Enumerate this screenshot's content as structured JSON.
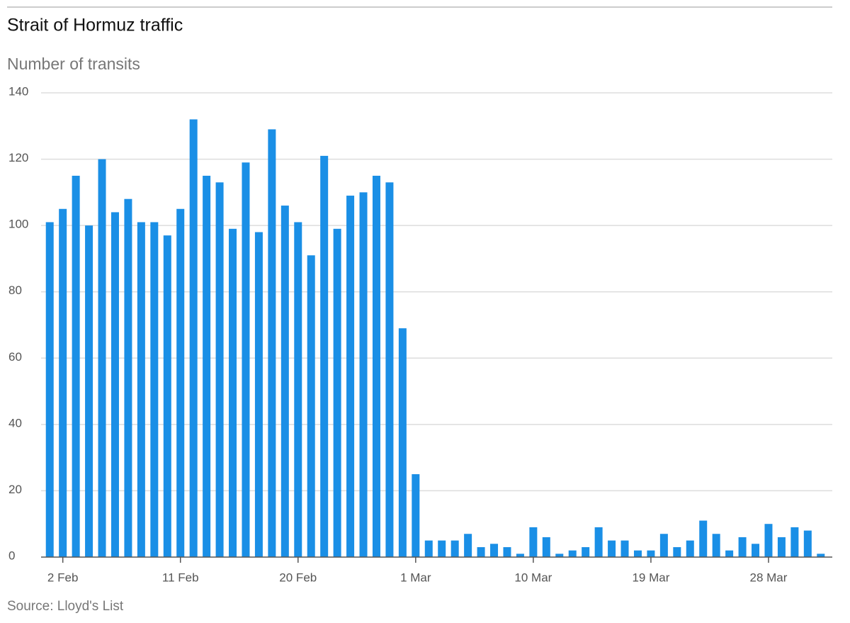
{
  "chart_data": {
    "type": "bar",
    "title": "Strait of Hormuz traffic",
    "subtitle": "Number of transits",
    "source": "Source: Lloyd's List",
    "color": "#1a8fe6",
    "grid": true,
    "ylim": [
      0,
      140
    ],
    "yticks": [
      0,
      20,
      40,
      60,
      80,
      100,
      120,
      140
    ],
    "categories": [
      null,
      "2 Feb",
      null,
      null,
      null,
      null,
      null,
      null,
      null,
      null,
      "11 Feb",
      null,
      null,
      null,
      null,
      null,
      null,
      null,
      null,
      "20 Feb",
      null,
      null,
      null,
      null,
      null,
      null,
      null,
      null,
      "1 Mar",
      null,
      null,
      null,
      null,
      null,
      null,
      null,
      null,
      "10 Mar",
      null,
      null,
      null,
      null,
      null,
      null,
      null,
      null,
      "19 Mar",
      null,
      null,
      null,
      null,
      null,
      null,
      null,
      null,
      "28 Mar",
      null,
      null,
      null,
      null
    ],
    "values": [
      101,
      105,
      115,
      100,
      120,
      104,
      108,
      101,
      101,
      97,
      105,
      132,
      115,
      113,
      99,
      119,
      98,
      129,
      106,
      101,
      91,
      121,
      99,
      109,
      110,
      115,
      113,
      69,
      25,
      5,
      5,
      5,
      7,
      3,
      4,
      3,
      1,
      9,
      6,
      1,
      2,
      3,
      9,
      5,
      5,
      2,
      2,
      7,
      3,
      5,
      11,
      7,
      2,
      6,
      4,
      10,
      6,
      9,
      8,
      1
    ]
  }
}
